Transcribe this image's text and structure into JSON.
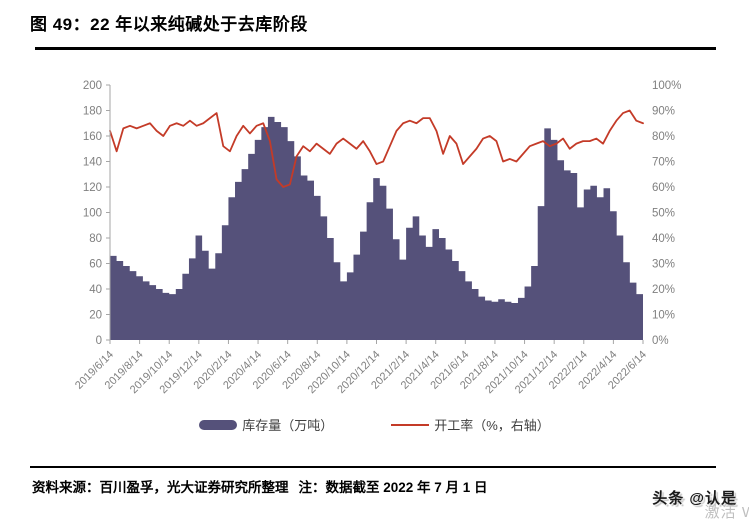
{
  "title": "图 49：22 年以来纯碱处于去库阶段",
  "legend": {
    "inventory_label": "库存量（万吨）",
    "rate_label": "开工率（%，右轴）"
  },
  "footer": {
    "source": "资料来源：百川盈孚，光大证券研究所整理",
    "note": "注：数据截至 2022 年 7 月 1 日"
  },
  "watermark": {
    "main": "头条 @认是",
    "sub": "激活 W"
  },
  "colors": {
    "inventory_fill": "#55517a",
    "rate_line": "#c43b28",
    "axis_text": "#808080",
    "axis_line": "#a6a6a6"
  },
  "chart_data": {
    "type": "area",
    "title": "",
    "xlabel": "",
    "ylabel_left": "库存量（万吨）",
    "ylabel_right": "开工率（%）",
    "grid": false,
    "legend_position": "bottom",
    "x_tick_labels": [
      "2019/6/14",
      "2019/8/14",
      "2019/10/14",
      "2019/12/14",
      "2020/2/14",
      "2020/4/14",
      "2020/6/14",
      "2020/8/14",
      "2020/10/14",
      "2020/12/14",
      "2021/2/14",
      "2021/4/14",
      "2021/6/14",
      "2021/8/14",
      "2021/10/14",
      "2021/12/14",
      "2022/2/14",
      "2022/4/14",
      "2022/6/14"
    ],
    "y_left": {
      "min": 0,
      "max": 200,
      "step": 20,
      "tick_labels": [
        "200",
        "180",
        "160",
        "140",
        "120",
        "100",
        "80",
        "60",
        "40",
        "20",
        "0"
      ]
    },
    "y_right": {
      "min": 0,
      "max": 100,
      "step": 10,
      "tick_labels": [
        "100%",
        "90%",
        "80%",
        "70%",
        "60%",
        "50%",
        "40%",
        "30%",
        "20%",
        "10%",
        "0%"
      ]
    },
    "sampling": "biweekly from 2019/6/14 to 2022/7/1, values estimated from plot",
    "series": [
      {
        "name": "库存量（万吨）",
        "type": "step_area",
        "axis": "left",
        "color": "#55517a",
        "values": [
          66,
          62,
          58,
          54,
          50,
          46,
          43,
          40,
          37,
          36,
          40,
          52,
          64,
          82,
          70,
          56,
          68,
          90,
          112,
          124,
          134,
          146,
          157,
          167,
          175,
          171,
          167,
          156,
          144,
          129,
          125,
          113,
          97,
          80,
          61,
          46,
          53,
          67,
          85,
          108,
          127,
          121,
          103,
          79,
          63,
          88,
          97,
          82,
          73,
          87,
          80,
          71,
          62,
          54,
          46,
          40,
          34,
          31,
          30,
          32,
          30,
          29,
          33,
          42,
          58,
          105,
          166,
          157,
          141,
          133,
          131,
          104,
          118,
          121,
          112,
          119,
          101,
          82,
          61,
          45,
          36
        ]
      },
      {
        "name": "开工率（%，右轴）",
        "type": "line",
        "axis": "right",
        "color": "#c43b28",
        "values": [
          82,
          74,
          83,
          84,
          83,
          84,
          85,
          82,
          80,
          84,
          85,
          84,
          86,
          84,
          85,
          87,
          89,
          76,
          74,
          80,
          84,
          81,
          84,
          85,
          78,
          63,
          60,
          61,
          72,
          76,
          74,
          77,
          75,
          73,
          77,
          79,
          77,
          75,
          78,
          74,
          69,
          70,
          76,
          82,
          85,
          86,
          85,
          87,
          87,
          82,
          73,
          80,
          77,
          69,
          72,
          75,
          79,
          80,
          78,
          70,
          71,
          70,
          73,
          76,
          77,
          78,
          76,
          77,
          79,
          75,
          77,
          78,
          78,
          79,
          77,
          82,
          86,
          89,
          90,
          86,
          85
        ]
      }
    ]
  }
}
